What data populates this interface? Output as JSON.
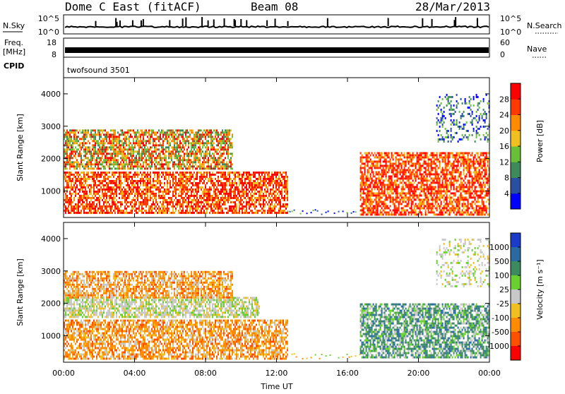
{
  "header": {
    "station": "Dome C East (fitACF)",
    "beam": "Beam 08",
    "date": "28/Mar/2013"
  },
  "noise_panel": {
    "left_label": "N.Sky",
    "left_ticks": [
      "10^5",
      "10^0"
    ],
    "right_ticks": [
      "10^5",
      "10^0"
    ],
    "right_label": "N.Search"
  },
  "freq_panel": {
    "left_label_top": "Freq.",
    "left_label_unit": "[MHz]",
    "left_ticks": [
      "18",
      "8"
    ],
    "right_ticks": [
      "60",
      "0"
    ],
    "right_label": "Nave"
  },
  "cpid_panel": {
    "label": "CPID",
    "program": "twofsound 3501"
  },
  "chart_data": [
    {
      "type": "heatmap",
      "name": "power",
      "ylabel": "Slant Range [km]",
      "yticks": [
        "1000",
        "2000",
        "3000",
        "4000"
      ],
      "ylim": [
        180,
        4500
      ],
      "xlim_hours": [
        0,
        24
      ],
      "colorbar": {
        "label": "Power [dB]",
        "ticks": [
          "4",
          "8",
          "12",
          "16",
          "20",
          "24",
          "28"
        ],
        "colors": [
          "#0000ff",
          "#2a4fa0",
          "#3e8a5a",
          "#6abf3a",
          "#f0c020",
          "#ff8c00",
          "#ff3a00",
          "#ff0000"
        ]
      },
      "regions": [
        {
          "start_h": 0.0,
          "end_h": 12.6,
          "range_lo": 300,
          "range_hi": 1600,
          "level": "high"
        },
        {
          "start_h": 0.0,
          "end_h": 9.5,
          "range_lo": 1700,
          "range_hi": 2900,
          "level": "mixed"
        },
        {
          "start_h": 16.7,
          "end_h": 24.0,
          "range_lo": 300,
          "range_hi": 2200,
          "level": "high"
        },
        {
          "start_h": 21.0,
          "end_h": 24.0,
          "range_lo": 2500,
          "range_hi": 4000,
          "level": "low"
        }
      ]
    },
    {
      "type": "heatmap",
      "name": "velocity",
      "ylabel": "Slant Range [km]",
      "yticks": [
        "1000",
        "2000",
        "3000",
        "4000"
      ],
      "ylim": [
        180,
        4500
      ],
      "xlim_hours": [
        0,
        24
      ],
      "colorbar": {
        "label": "Velocity [m s⁻¹]",
        "ticks": [
          "1000",
          "500",
          "100",
          "25",
          "-25",
          "-100",
          "-500",
          "-1000"
        ],
        "colors": [
          "#1a3cc8",
          "#2a6aa0",
          "#3d8a60",
          "#6ad030",
          "#c8c8c8",
          "#f0c020",
          "#ff8c00",
          "#ff5000",
          "#ff0000"
        ]
      },
      "regions": [
        {
          "start_h": 0.0,
          "end_h": 12.6,
          "range_lo": 300,
          "range_hi": 1500,
          "level": "negative"
        },
        {
          "start_h": 0.0,
          "end_h": 11.0,
          "range_lo": 1600,
          "range_hi": 2200,
          "level": "near-zero"
        },
        {
          "start_h": 0.0,
          "end_h": 9.5,
          "range_lo": 2200,
          "range_hi": 3000,
          "level": "negative"
        },
        {
          "start_h": 16.7,
          "end_h": 24.0,
          "range_lo": 300,
          "range_hi": 2000,
          "level": "positive"
        },
        {
          "start_h": 21.0,
          "end_h": 24.0,
          "range_lo": 2500,
          "range_hi": 4000,
          "level": "near-zero"
        }
      ]
    }
  ],
  "xaxis": {
    "ticks": [
      "00:00",
      "04:00",
      "08:00",
      "12:00",
      "16:00",
      "20:00",
      "00:00"
    ],
    "label": "Time UT"
  }
}
